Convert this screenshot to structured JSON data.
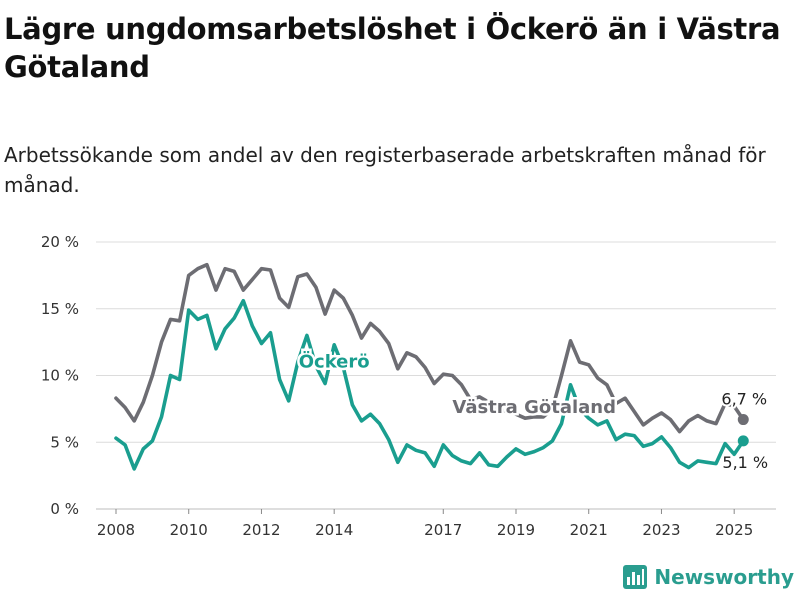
{
  "header": {
    "title": "Lägre ungdomsarbetslöshet i Öckerö än i Västra Götaland",
    "subtitle": "Arbetssökande som andel av den registerbaserade arbetskraften månad för månad."
  },
  "brand": {
    "name": "Newsworthy",
    "icon": "bar-chart-icon",
    "color": "#2a9d8f"
  },
  "chart_data": {
    "type": "line",
    "title": "Lägre ungdomsarbetslöshet i Öckerö än i Västra Götaland",
    "subtitle": "Arbetssökande som andel av den registerbaserade arbetskraften månad för månad.",
    "x_ticks": [
      "2008",
      "2010",
      "2012",
      "2014",
      "2017",
      "2019",
      "2021",
      "2023",
      "2025"
    ],
    "y_ticks": [
      "0 %",
      "5 %",
      "10 %",
      "15 %",
      "20 %"
    ],
    "y_tick_values": [
      0,
      5,
      10,
      15,
      20
    ],
    "ylim": [
      0,
      20
    ],
    "grid": true,
    "series": [
      {
        "name": "Västra Götaland",
        "color": "#6d6d73",
        "end_label": "6,7 %",
        "points": [
          [
            "2008-01",
            8.3
          ],
          [
            "2008-04",
            7.6
          ],
          [
            "2008-07",
            6.6
          ],
          [
            "2008-10",
            8.0
          ],
          [
            "2009-01",
            10.0
          ],
          [
            "2009-04",
            12.5
          ],
          [
            "2009-07",
            14.2
          ],
          [
            "2009-10",
            14.1
          ],
          [
            "2010-01",
            17.5
          ],
          [
            "2010-04",
            18.0
          ],
          [
            "2010-07",
            18.3
          ],
          [
            "2010-10",
            16.4
          ],
          [
            "2011-01",
            18.0
          ],
          [
            "2011-04",
            17.8
          ],
          [
            "2011-07",
            16.4
          ],
          [
            "2011-10",
            17.2
          ],
          [
            "2012-01",
            18.0
          ],
          [
            "2012-04",
            17.9
          ],
          [
            "2012-07",
            15.8
          ],
          [
            "2012-10",
            15.1
          ],
          [
            "2013-01",
            17.4
          ],
          [
            "2013-04",
            17.6
          ],
          [
            "2013-07",
            16.6
          ],
          [
            "2013-10",
            14.6
          ],
          [
            "2014-01",
            16.4
          ],
          [
            "2014-04",
            15.8
          ],
          [
            "2014-07",
            14.5
          ],
          [
            "2014-10",
            12.8
          ],
          [
            "2015-01",
            13.9
          ],
          [
            "2015-04",
            13.3
          ],
          [
            "2015-07",
            12.4
          ],
          [
            "2015-10",
            10.5
          ],
          [
            "2016-01",
            11.7
          ],
          [
            "2016-04",
            11.4
          ],
          [
            "2016-07",
            10.6
          ],
          [
            "2016-10",
            9.4
          ],
          [
            "2017-01",
            10.1
          ],
          [
            "2017-04",
            10.0
          ],
          [
            "2017-07",
            9.3
          ],
          [
            "2017-10",
            8.2
          ],
          [
            "2018-01",
            8.4
          ],
          [
            "2018-04",
            8.0
          ],
          [
            "2018-07",
            7.5
          ],
          [
            "2018-10",
            7.3
          ],
          [
            "2019-01",
            7.1
          ],
          [
            "2019-04",
            6.8
          ],
          [
            "2019-07",
            6.9
          ],
          [
            "2019-10",
            6.9
          ],
          [
            "2020-01",
            7.5
          ],
          [
            "2020-04",
            10.0
          ],
          [
            "2020-07",
            12.6
          ],
          [
            "2020-10",
            11.0
          ],
          [
            "2021-01",
            10.8
          ],
          [
            "2021-04",
            9.8
          ],
          [
            "2021-07",
            9.3
          ],
          [
            "2021-10",
            7.9
          ],
          [
            "2022-01",
            8.3
          ],
          [
            "2022-04",
            7.3
          ],
          [
            "2022-07",
            6.3
          ],
          [
            "2022-10",
            6.8
          ],
          [
            "2023-01",
            7.2
          ],
          [
            "2023-04",
            6.7
          ],
          [
            "2023-07",
            5.8
          ],
          [
            "2023-10",
            6.6
          ],
          [
            "2024-01",
            7.0
          ],
          [
            "2024-04",
            6.6
          ],
          [
            "2024-07",
            6.4
          ],
          [
            "2024-10",
            7.9
          ],
          [
            "2025-01",
            7.7
          ],
          [
            "2025-04",
            6.7
          ]
        ],
        "label": "Västra Götaland"
      },
      {
        "name": "Öckerö",
        "color": "#1a9e8f",
        "end_label": "5,1 %",
        "points": [
          [
            "2008-01",
            5.3
          ],
          [
            "2008-04",
            4.8
          ],
          [
            "2008-07",
            3.0
          ],
          [
            "2008-10",
            4.5
          ],
          [
            "2009-01",
            5.1
          ],
          [
            "2009-04",
            6.9
          ],
          [
            "2009-07",
            10.0
          ],
          [
            "2009-10",
            9.7
          ],
          [
            "2010-01",
            14.9
          ],
          [
            "2010-04",
            14.2
          ],
          [
            "2010-07",
            14.5
          ],
          [
            "2010-10",
            12.0
          ],
          [
            "2011-01",
            13.5
          ],
          [
            "2011-04",
            14.3
          ],
          [
            "2011-07",
            15.6
          ],
          [
            "2011-10",
            13.7
          ],
          [
            "2012-01",
            12.4
          ],
          [
            "2012-04",
            13.2
          ],
          [
            "2012-07",
            9.7
          ],
          [
            "2012-10",
            8.1
          ],
          [
            "2013-01",
            11.0
          ],
          [
            "2013-04",
            13.0
          ],
          [
            "2013-07",
            10.7
          ],
          [
            "2013-10",
            9.4
          ],
          [
            "2014-01",
            12.3
          ],
          [
            "2014-04",
            10.6
          ],
          [
            "2014-07",
            7.8
          ],
          [
            "2014-10",
            6.6
          ],
          [
            "2015-01",
            7.1
          ],
          [
            "2015-04",
            6.4
          ],
          [
            "2015-07",
            5.2
          ],
          [
            "2015-10",
            3.5
          ],
          [
            "2016-01",
            4.8
          ],
          [
            "2016-04",
            4.4
          ],
          [
            "2016-07",
            4.2
          ],
          [
            "2016-10",
            3.2
          ],
          [
            "2017-01",
            4.8
          ],
          [
            "2017-04",
            4.0
          ],
          [
            "2017-07",
            3.6
          ],
          [
            "2017-10",
            3.4
          ],
          [
            "2018-01",
            4.2
          ],
          [
            "2018-04",
            3.3
          ],
          [
            "2018-07",
            3.2
          ],
          [
            "2018-10",
            3.9
          ],
          [
            "2019-01",
            4.5
          ],
          [
            "2019-04",
            4.1
          ],
          [
            "2019-07",
            4.3
          ],
          [
            "2019-10",
            4.6
          ],
          [
            "2020-01",
            5.1
          ],
          [
            "2020-04",
            6.4
          ],
          [
            "2020-07",
            9.3
          ],
          [
            "2020-10",
            7.5
          ],
          [
            "2021-01",
            6.8
          ],
          [
            "2021-04",
            6.3
          ],
          [
            "2021-07",
            6.6
          ],
          [
            "2021-10",
            5.2
          ],
          [
            "2022-01",
            5.6
          ],
          [
            "2022-04",
            5.5
          ],
          [
            "2022-07",
            4.7
          ],
          [
            "2022-10",
            4.9
          ],
          [
            "2023-01",
            5.4
          ],
          [
            "2023-04",
            4.6
          ],
          [
            "2023-07",
            3.5
          ],
          [
            "2023-10",
            3.1
          ],
          [
            "2024-01",
            3.6
          ],
          [
            "2024-04",
            3.5
          ],
          [
            "2024-07",
            3.4
          ],
          [
            "2024-10",
            4.9
          ],
          [
            "2025-01",
            4.1
          ],
          [
            "2025-04",
            5.1
          ]
        ],
        "label": "Öckerö"
      }
    ]
  }
}
